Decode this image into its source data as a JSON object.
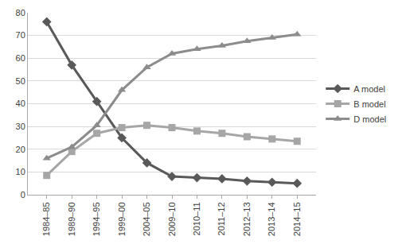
{
  "chart_data": {
    "type": "line",
    "categories": [
      "1984–85",
      "1989–90",
      "1994–95",
      "1999–00",
      "2004–05",
      "2009–10",
      "2010–11",
      "2011–12",
      "2012–13",
      "2013–14",
      "2014–15"
    ],
    "series": [
      {
        "name": "A model",
        "color": "#595959",
        "marker": "diamond",
        "line_style": "solid",
        "values": [
          76,
          57,
          41,
          25,
          14,
          8,
          7.5,
          7,
          6,
          5.5,
          5
        ]
      },
      {
        "name": "B model",
        "color": "#a6a6a6",
        "marker": "square",
        "line_style": "solid",
        "values": [
          8.5,
          19,
          27,
          29.5,
          30.5,
          29.5,
          28,
          27,
          25.5,
          24.5,
          23.5
        ]
      },
      {
        "name": "D model",
        "color": "#8c8c8c",
        "marker": "triangle-up",
        "line_style": "solid",
        "values": [
          16,
          21,
          30.5,
          46,
          56,
          62,
          64,
          65.5,
          67.5,
          69,
          70.5
        ]
      }
    ],
    "ylim": [
      0,
      80
    ],
    "yticks": [
      0,
      10,
      20,
      30,
      40,
      50,
      60,
      70,
      80
    ],
    "grid": true,
    "legend": "right"
  }
}
